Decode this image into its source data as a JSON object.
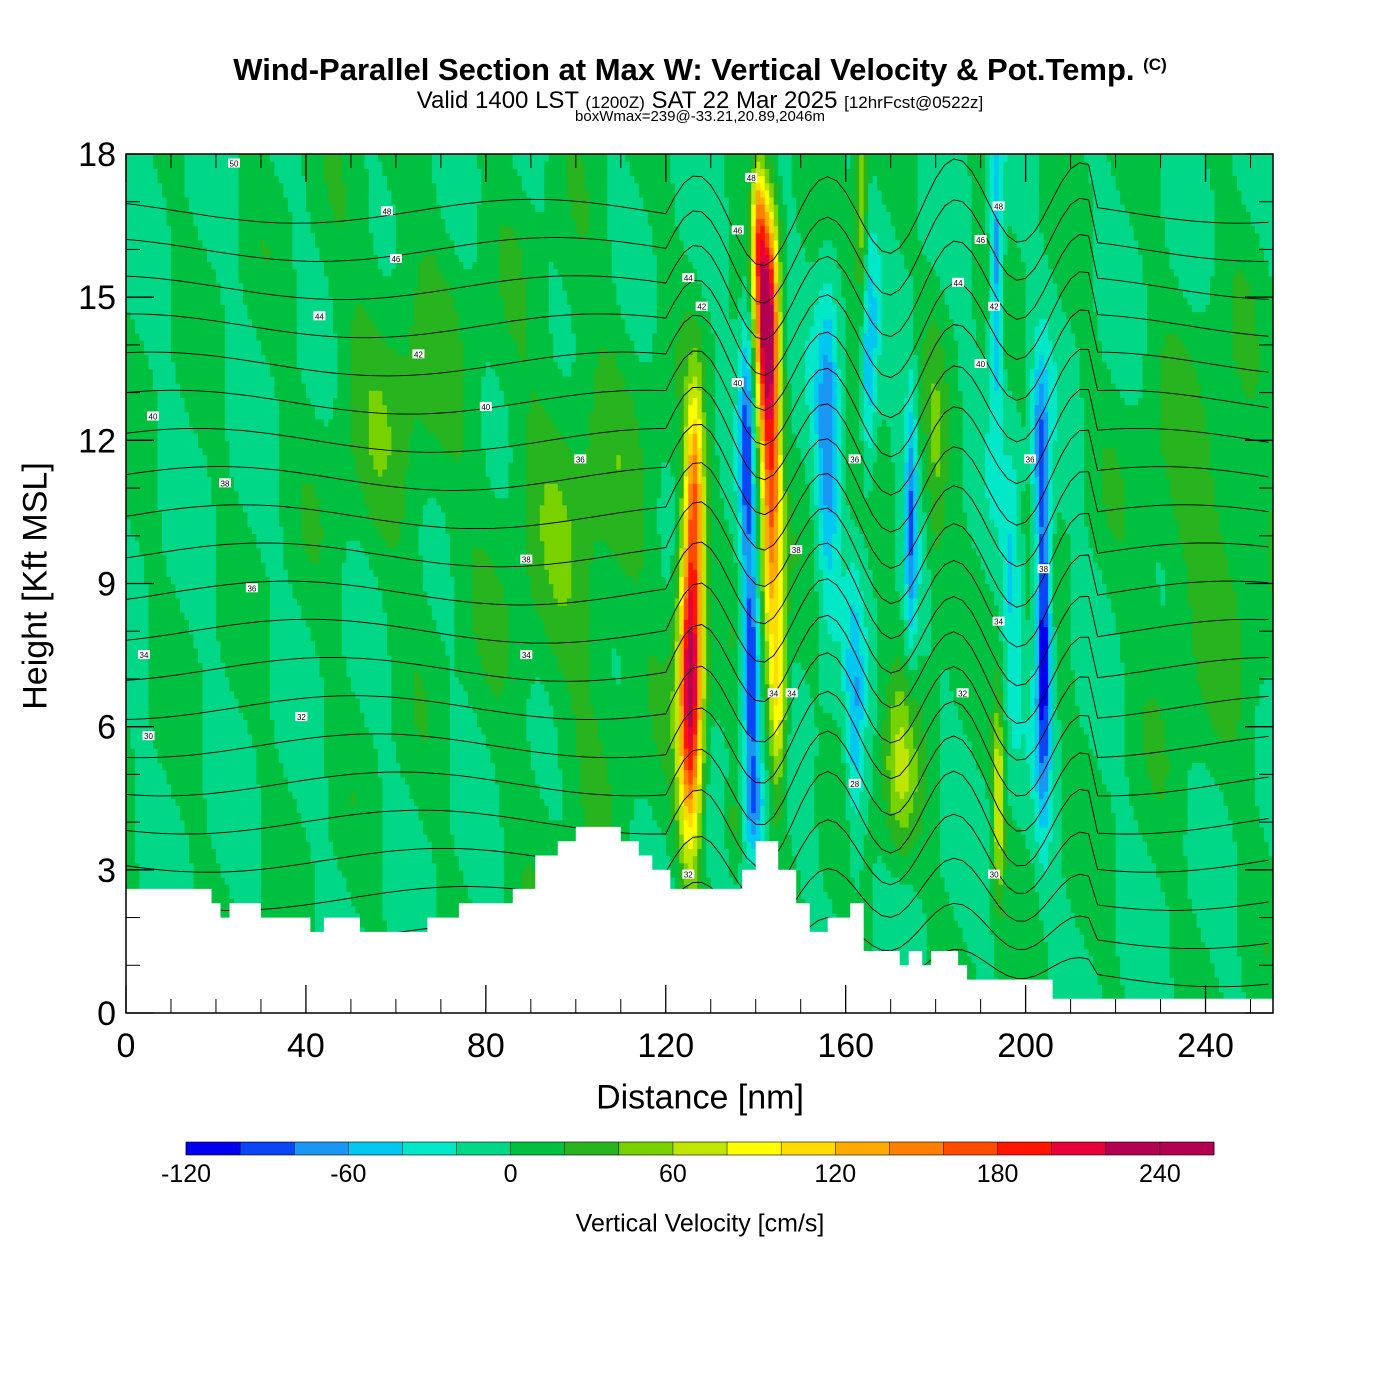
{
  "header": {
    "title": "Wind-Parallel Section at Max W: Vertical Velocity & Pot.Temp.",
    "copyright": "(C)",
    "valid_prefix": "Valid 1400 LST",
    "valid_utc": "(1200Z)",
    "valid_date": "SAT 22 Mar 2025",
    "forecast": "[12hrFcst@0522z]",
    "box_info": "boxWmax=239@-33.21,20.89,2046m"
  },
  "chart_data": {
    "type": "heatmap",
    "xlabel": "Distance [nm]",
    "ylabel": "Height [Kft MSL]",
    "xlim": [
      0,
      255
    ],
    "ylim": [
      0,
      18
    ],
    "x_ticks": [
      0,
      40,
      80,
      120,
      160,
      200,
      240
    ],
    "y_ticks": [
      0,
      3,
      6,
      9,
      12,
      15,
      18
    ],
    "colorbar": {
      "label": "Vertical Velocity [cm/s]",
      "range": [
        -120,
        260
      ],
      "step": 20,
      "tick_values": [
        -120,
        -60,
        0,
        60,
        120,
        180,
        240
      ],
      "colors": [
        "#0000ee",
        "#0a46f5",
        "#1a96f5",
        "#00c8f0",
        "#00e8c8",
        "#00d888",
        "#00c040",
        "#28b41e",
        "#78d200",
        "#bee600",
        "#ffff00",
        "#ffdc00",
        "#ffaa00",
        "#ff8000",
        "#ff4b00",
        "#ff1400",
        "#e6003c",
        "#b40050",
        "#b40050"
      ]
    },
    "background_w": 0,
    "terrain_kft": [
      [
        0,
        2.6
      ],
      [
        14,
        2.6
      ],
      [
        19,
        2.3
      ],
      [
        21,
        2.0
      ],
      [
        23,
        2.3
      ],
      [
        30,
        2.0
      ],
      [
        41,
        1.7
      ],
      [
        44,
        2.0
      ],
      [
        52,
        1.7
      ],
      [
        67,
        2.0
      ],
      [
        74,
        2.3
      ],
      [
        86,
        2.6
      ],
      [
        91,
        3.3
      ],
      [
        96,
        3.6
      ],
      [
        100,
        3.9
      ],
      [
        110,
        3.6
      ],
      [
        114,
        3.3
      ],
      [
        117,
        3.0
      ],
      [
        121,
        2.6
      ],
      [
        135,
        2.6
      ],
      [
        137,
        3.0
      ],
      [
        140,
        3.6
      ],
      [
        145,
        3.0
      ],
      [
        149,
        2.3
      ],
      [
        152,
        1.7
      ],
      [
        156,
        2.0
      ],
      [
        161,
        2.3
      ],
      [
        164,
        1.3
      ],
      [
        170,
        1.3
      ],
      [
        172,
        1.0
      ],
      [
        174,
        1.3
      ],
      [
        177,
        1.0
      ],
      [
        179,
        1.3
      ],
      [
        185,
        1.0
      ],
      [
        187,
        0.7
      ],
      [
        205,
        0.7
      ],
      [
        206,
        0.3
      ],
      [
        255,
        0.3
      ]
    ],
    "w_features": [
      {
        "x": 125.5,
        "z": 7.0,
        "w": 239,
        "sx": 2.6,
        "sz": 3.3
      },
      {
        "x": 126.5,
        "z": 11.0,
        "w": 110,
        "sx": 2.0,
        "sz": 2.2
      },
      {
        "x": 142.5,
        "z": 14.5,
        "w": 230,
        "sx": 2.4,
        "sz": 2.5
      },
      {
        "x": 143.5,
        "z": 10.5,
        "w": 150,
        "sx": 2.3,
        "sz": 3.0
      },
      {
        "x": 145.0,
        "z": 6.5,
        "w": 100,
        "sx": 2.0,
        "sz": 2.0
      },
      {
        "x": 140.5,
        "z": 16.5,
        "w": 100,
        "sx": 1.5,
        "sz": 1.5
      },
      {
        "x": 139.0,
        "z": 7.0,
        "w": -110,
        "sx": 1.8,
        "sz": 2.5
      },
      {
        "x": 138.0,
        "z": 12.0,
        "w": -80,
        "sx": 1.6,
        "sz": 3.0
      },
      {
        "x": 140.0,
        "z": 4.3,
        "w": -60,
        "sx": 2.6,
        "sz": 1.0
      },
      {
        "x": 156.0,
        "z": 12.0,
        "w": -70,
        "sx": 2.5,
        "sz": 3.5
      },
      {
        "x": 165.0,
        "z": 13.5,
        "w": -60,
        "sx": 1.8,
        "sz": 2.5
      },
      {
        "x": 174.5,
        "z": 10.5,
        "w": -70,
        "sx": 1.3,
        "sz": 3.0
      },
      {
        "x": 162.0,
        "z": 6.0,
        "w": -50,
        "sx": 2.0,
        "sz": 3.0
      },
      {
        "x": 204.0,
        "z": 8.0,
        "w": -125,
        "sx": 1.7,
        "sz": 3.5
      },
      {
        "x": 203.0,
        "z": 12.0,
        "w": -55,
        "sx": 1.8,
        "sz": 1.8
      },
      {
        "x": 193.5,
        "z": 15.5,
        "w": -80,
        "sx": 1.5,
        "sz": 3.0
      },
      {
        "x": 197.0,
        "z": 9.0,
        "w": -40,
        "sx": 2.0,
        "sz": 3.0
      },
      {
        "x": 172.0,
        "z": 5.0,
        "w": 55,
        "sx": 4.0,
        "sz": 2.0
      },
      {
        "x": 163.5,
        "z": 16.5,
        "w": 65,
        "sx": 1.5,
        "sz": 2.5
      },
      {
        "x": 194.0,
        "z": 4.5,
        "w": 85,
        "sx": 1.2,
        "sz": 2.0
      },
      {
        "x": 135.0,
        "z": 4.0,
        "w": 40,
        "sx": 2.0,
        "sz": 1.2
      },
      {
        "x": 180.0,
        "z": 11.0,
        "w": 35,
        "sx": 2.5,
        "sz": 3.0
      },
      {
        "x": 240.0,
        "z": 10.0,
        "w": 30,
        "sx": 15.0,
        "sz": 4.0
      },
      {
        "x": 100.0,
        "z": 10.0,
        "w": 30,
        "sx": 18.0,
        "sz": 5.0
      },
      {
        "x": 60.0,
        "z": 13.0,
        "w": 28,
        "sx": 15.0,
        "sz": 4.0
      }
    ],
    "theta_contours": {
      "levels": [
        28,
        29,
        30,
        31,
        32,
        33,
        34,
        35,
        36,
        37,
        38,
        39,
        40,
        41,
        42,
        43,
        44,
        45,
        46,
        47,
        48,
        49,
        50
      ],
      "labels": [
        {
          "x": 5,
          "z": 5.8,
          "text": "30"
        },
        {
          "x": 4,
          "z": 7.5,
          "text": "34"
        },
        {
          "x": 39,
          "z": 6.2,
          "text": "32"
        },
        {
          "x": 28,
          "z": 8.9,
          "text": "36"
        },
        {
          "x": 89,
          "z": 7.5,
          "text": "34"
        },
        {
          "x": 89,
          "z": 9.5,
          "text": "38"
        },
        {
          "x": 22,
          "z": 11.1,
          "text": "38"
        },
        {
          "x": 6,
          "z": 12.5,
          "text": "40"
        },
        {
          "x": 80,
          "z": 12.7,
          "text": "40"
        },
        {
          "x": 101,
          "z": 11.6,
          "text": "36"
        },
        {
          "x": 65,
          "z": 13.8,
          "text": "42"
        },
        {
          "x": 43,
          "z": 14.6,
          "text": "44"
        },
        {
          "x": 60,
          "z": 15.8,
          "text": "46"
        },
        {
          "x": 58,
          "z": 16.8,
          "text": "48"
        },
        {
          "x": 24,
          "z": 17.8,
          "text": "50"
        },
        {
          "x": 125,
          "z": 2.9,
          "text": "32"
        },
        {
          "x": 128,
          "z": 14.8,
          "text": "42"
        },
        {
          "x": 125,
          "z": 15.4,
          "text": "44"
        },
        {
          "x": 136,
          "z": 16.4,
          "text": "46"
        },
        {
          "x": 139,
          "z": 17.5,
          "text": "48"
        },
        {
          "x": 136,
          "z": 13.2,
          "text": "40"
        },
        {
          "x": 149,
          "z": 9.7,
          "text": "38"
        },
        {
          "x": 144,
          "z": 6.7,
          "text": "34"
        },
        {
          "x": 148,
          "z": 6.7,
          "text": "34"
        },
        {
          "x": 162,
          "z": 11.6,
          "text": "36"
        },
        {
          "x": 162,
          "z": 4.8,
          "text": "28"
        },
        {
          "x": 193,
          "z": 2.9,
          "text": "30"
        },
        {
          "x": 186,
          "z": 6.7,
          "text": "32"
        },
        {
          "x": 194,
          "z": 8.2,
          "text": "34"
        },
        {
          "x": 190,
          "z": 13.6,
          "text": "40"
        },
        {
          "x": 193,
          "z": 14.8,
          "text": "42"
        },
        {
          "x": 185,
          "z": 15.3,
          "text": "44"
        },
        {
          "x": 190,
          "z": 16.2,
          "text": "46"
        },
        {
          "x": 194,
          "z": 16.9,
          "text": "48"
        },
        {
          "x": 201,
          "z": 11.6,
          "text": "36"
        },
        {
          "x": 204,
          "z": 9.3,
          "text": "38"
        }
      ]
    }
  }
}
